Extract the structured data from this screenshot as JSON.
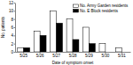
{
  "chart_data": {
    "type": "bar",
    "x_label": "Date of symptom onset",
    "y_label": "No. patients",
    "categories": [
      "5/25",
      "5/26",
      "5/27",
      "5/28",
      "5/29",
      "5/30",
      "5/31"
    ],
    "series": [
      {
        "name": "No. Army Garden residents",
        "color": "#ffffff",
        "values": [
          1,
          5,
          10,
          8,
          6,
          2,
          1
        ]
      },
      {
        "name": "No. E Block residents",
        "color": "#000000",
        "values": [
          1,
          4,
          7,
          3,
          2,
          0,
          0
        ]
      }
    ],
    "ylim": [
      0,
      12
    ],
    "yticks": [
      0,
      2,
      4,
      6,
      8,
      10,
      12
    ],
    "legend": "upper right"
  }
}
